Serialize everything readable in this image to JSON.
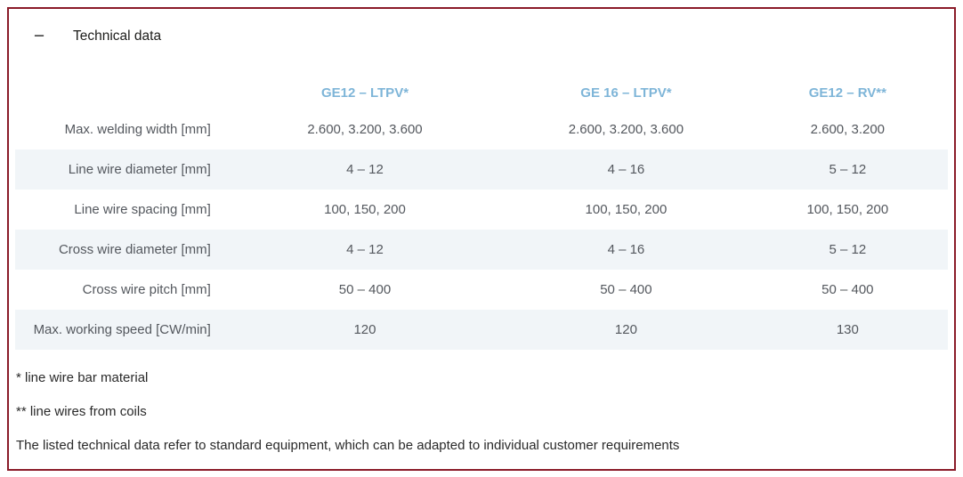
{
  "accordion": {
    "title": "Technical data",
    "collapse_icon": "−"
  },
  "table": {
    "columns": [
      "GE12 – LTPV*",
      "GE 16 – LTPV*",
      "GE12 – RV**"
    ],
    "rows": [
      {
        "label": "Max. welding width [mm]",
        "values": [
          "2.600, 3.200, 3.600",
          "2.600, 3.200, 3.600",
          "2.600, 3.200"
        ]
      },
      {
        "label": "Line wire diameter [mm]",
        "values": [
          "4 – 12",
          "4 – 16",
          "5 – 12"
        ]
      },
      {
        "label": "Line wire spacing [mm]",
        "values": [
          "100, 150, 200",
          "100, 150, 200",
          "100, 150, 200"
        ]
      },
      {
        "label": "Cross wire diameter [mm]",
        "values": [
          "4 – 12",
          "4 – 16",
          "5 – 12"
        ]
      },
      {
        "label": "Cross wire pitch [mm]",
        "values": [
          "50 – 400",
          "50 – 400",
          "50 – 400"
        ]
      },
      {
        "label": "Max. working speed [CW/min]",
        "values": [
          "120",
          "120",
          "130"
        ]
      }
    ]
  },
  "footnotes": [
    "* line wire bar material",
    "** line wires from coils",
    "The listed technical data refer to standard equipment, which can be adapted to individual customer requirements"
  ],
  "colors": {
    "border": "#8a1b29",
    "header_accent": "#7eb5d8",
    "row_alt_bg": "#f1f5f8",
    "text_muted": "#54585e",
    "text_dark": "#1d1d1b"
  }
}
